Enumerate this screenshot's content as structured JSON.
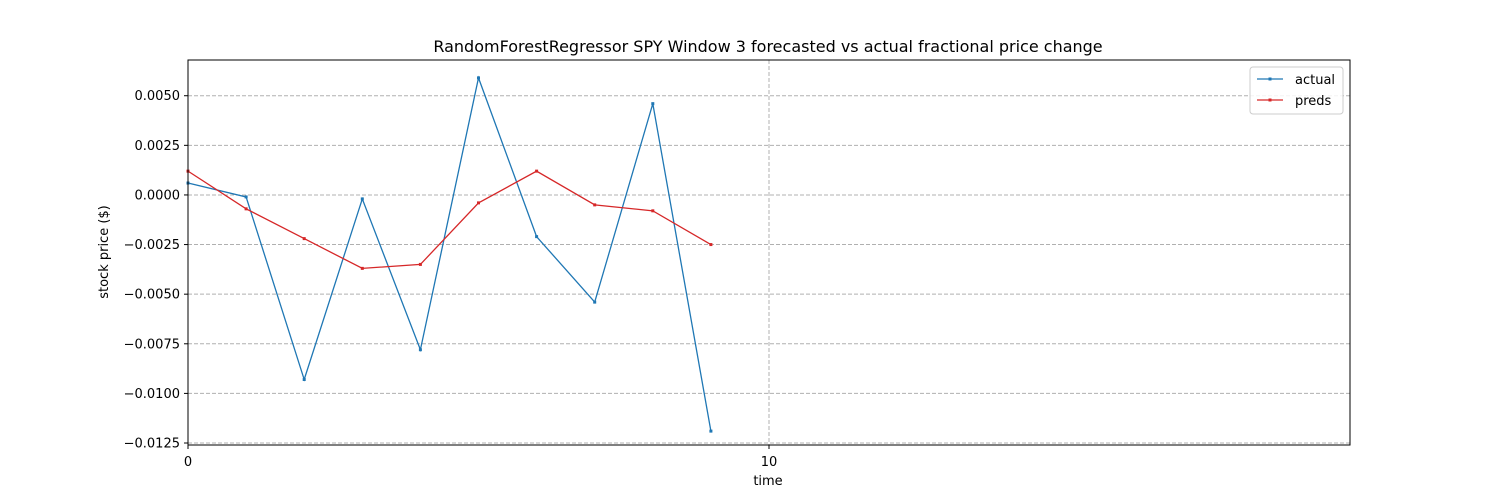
{
  "chart_data": {
    "type": "line",
    "title": "RandomForestRegressor SPY Window 3 forecasted vs actual fractional price change",
    "xlabel": "time",
    "ylabel": "stock price ($)",
    "xlim": [
      0,
      20
    ],
    "ylim": [
      -0.0126,
      0.0068
    ],
    "x_ticks": [
      0,
      10
    ],
    "x_tick_labels": [
      "0",
      "10"
    ],
    "y_ticks": [
      -0.0125,
      -0.01,
      -0.0075,
      -0.005,
      -0.0025,
      0.0,
      0.0025,
      0.005
    ],
    "y_tick_labels": [
      "−0.0125",
      "−0.0100",
      "−0.0075",
      "−0.0050",
      "−0.0025",
      "0.0000",
      "0.0025",
      "0.0050"
    ],
    "grid": true,
    "legend_position": "top-right",
    "x": [
      0,
      1,
      2,
      3,
      4,
      5,
      6,
      7,
      8,
      9
    ],
    "series": [
      {
        "name": "actual",
        "color": "#1f77b4",
        "values": [
          0.0006,
          -0.0001,
          -0.0093,
          -0.0002,
          -0.0078,
          0.0059,
          -0.0021,
          -0.0054,
          0.0046,
          -0.0119
        ]
      },
      {
        "name": "preds",
        "color": "#d62728",
        "values": [
          0.0012,
          -0.0007,
          -0.0022,
          -0.0037,
          -0.0035,
          -0.0004,
          0.0012,
          -0.0005,
          -0.0008,
          -0.0025
        ]
      }
    ]
  }
}
